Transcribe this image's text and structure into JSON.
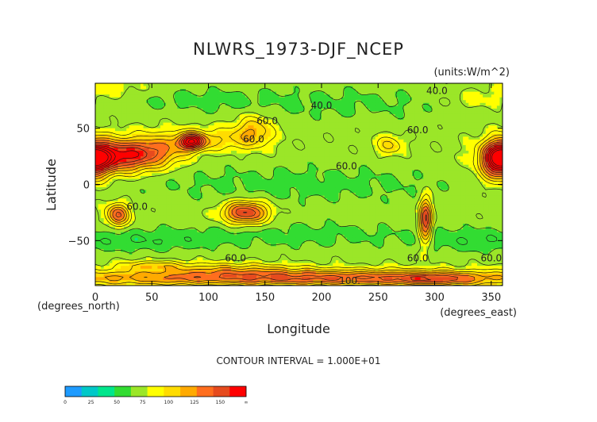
{
  "chart_data": {
    "type": "heatmap",
    "title": "NLWRS_1973-DJF_NCEP",
    "units": "(units:W/m^2)",
    "xlabel": "Longitude",
    "ylabel": "Latitude",
    "x_unit_label": "(degrees_east)",
    "y_unit_label": "(degrees_north)",
    "xlim": [
      0,
      360
    ],
    "ylim": [
      -90,
      90
    ],
    "x_ticks": [
      0,
      50,
      100,
      150,
      200,
      250,
      300,
      350
    ],
    "y_ticks": [
      50,
      0,
      -50
    ],
    "x_tick_labels": [
      "0",
      "50",
      "100",
      "150",
      "200",
      "250",
      "300",
      "350"
    ],
    "y_tick_labels": [
      "50",
      "0",
      "−50"
    ],
    "contour_interval_text": "CONTOUR INTERVAL = 1.000E+01",
    "contour_labels": [
      {
        "text": "40.0",
        "lon": 302,
        "lat": 83
      },
      {
        "text": "40.0",
        "lon": 200,
        "lat": 70
      },
      {
        "text": "60.0",
        "lon": 285,
        "lat": 48
      },
      {
        "text": "60.0",
        "lon": 152,
        "lat": 56
      },
      {
        "text": "60.0",
        "lon": 140,
        "lat": 40
      },
      {
        "text": "60.0",
        "lon": 222,
        "lat": 16
      },
      {
        "text": "60.0",
        "lon": 37,
        "lat": -20
      },
      {
        "text": "60.0",
        "lon": 124,
        "lat": -66
      },
      {
        "text": "60.0",
        "lon": 285,
        "lat": -66
      },
      {
        "text": "60.0",
        "lon": 350,
        "lat": -66
      },
      {
        "text": "100.",
        "lon": 225,
        "lat": -86
      }
    ],
    "colorbar": {
      "bounds": [
        "0",
        "25",
        "50",
        "75",
        "100",
        "125",
        "150",
        "∞"
      ],
      "colors": [
        "#1e9bff",
        "#00c8c8",
        "#00e68c",
        "#32dc32",
        "#9be628",
        "#ffff00",
        "#ffdc00",
        "#ffaa00",
        "#ff6e1e",
        "#e64b1e",
        "#ff0000"
      ]
    },
    "fields": {
      "base": 58,
      "blobs": [
        {
          "lon": 20,
          "lat": 25,
          "sx": 22,
          "sy": 10,
          "amp": 70
        },
        {
          "lon": 0,
          "lat": 25,
          "sx": 10,
          "sy": 10,
          "amp": 40
        },
        {
          "lon": 355,
          "lat": 20,
          "sx": 10,
          "sy": 12,
          "amp": 55
        },
        {
          "lon": 55,
          "lat": 30,
          "sx": 18,
          "sy": 10,
          "amp": 35
        },
        {
          "lon": 85,
          "lat": 38,
          "sx": 8,
          "sy": 5,
          "amp": 75
        },
        {
          "lon": 105,
          "lat": 40,
          "sx": 25,
          "sy": 7,
          "amp": 22
        },
        {
          "lon": 140,
          "lat": 48,
          "sx": 12,
          "sy": 10,
          "amp": 30
        },
        {
          "lon": 260,
          "lat": 35,
          "sx": 8,
          "sy": 6,
          "amp": 25
        },
        {
          "lon": 335,
          "lat": 75,
          "sx": 25,
          "sy": 6,
          "amp": 12
        },
        {
          "lon": 230,
          "lat": 72,
          "sx": 80,
          "sy": 12,
          "amp": -10
        },
        {
          "lon": 90,
          "lat": 75,
          "sx": 50,
          "sy": 8,
          "amp": -10
        },
        {
          "lon": 15,
          "lat": 85,
          "sx": 20,
          "sy": 5,
          "amp": 10
        },
        {
          "lon": 180,
          "lat": 0,
          "sx": 110,
          "sy": 13,
          "amp": -12
        },
        {
          "lon": 20,
          "lat": -27,
          "sx": 7,
          "sy": 7,
          "amp": 55
        },
        {
          "lon": 133,
          "lat": -25,
          "sx": 14,
          "sy": 7,
          "amp": 65
        },
        {
          "lon": 292,
          "lat": -32,
          "sx": 4,
          "sy": 14,
          "amp": 65
        },
        {
          "lon": 180,
          "lat": -45,
          "sx": 90,
          "sy": 9,
          "amp": -12
        },
        {
          "lon": 45,
          "lat": -50,
          "sx": 40,
          "sy": 7,
          "amp": -14
        },
        {
          "lon": 330,
          "lat": -50,
          "sx": 30,
          "sy": 8,
          "amp": -12
        },
        {
          "lon": 180,
          "lat": -83,
          "sx": 160,
          "sy": 5,
          "amp": 55
        },
        {
          "lon": 120,
          "lat": -75,
          "sx": 40,
          "sy": 4,
          "amp": 20
        },
        {
          "lon": 300,
          "lat": -85,
          "sx": 25,
          "sy": 4,
          "amp": 25
        },
        {
          "lon": 50,
          "lat": -72,
          "sx": 20,
          "sy": 3,
          "amp": 25
        }
      ]
    }
  }
}
